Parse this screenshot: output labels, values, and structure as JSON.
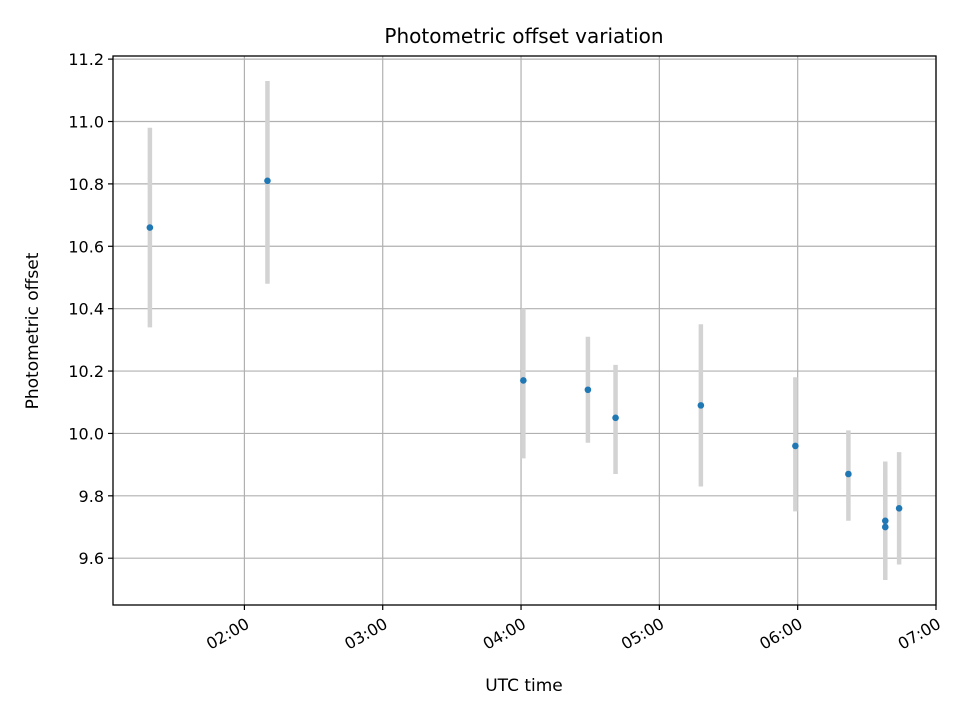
{
  "chart_data": {
    "type": "scatter",
    "title": "Photometric offset variation",
    "xlabel": "UTC time",
    "ylabel": "Photometric offset",
    "x_is_time": true,
    "xlim": [
      "01:03",
      "07:00"
    ],
    "ylim": [
      9.45,
      11.21
    ],
    "x_ticks": [
      "02:00",
      "03:00",
      "04:00",
      "05:00",
      "06:00",
      "07:00"
    ],
    "y_ticks": [
      "9.6",
      "9.8",
      "10.0",
      "10.2",
      "10.4",
      "10.6",
      "10.8",
      "11.0",
      "11.2"
    ],
    "grid": true,
    "errorbar_color": "#d3d3d3",
    "point_color": "#1f77b4",
    "points": [
      {
        "x": "01:19",
        "y": 10.66,
        "ylow": 10.34,
        "yhigh": 10.98
      },
      {
        "x": "02:10",
        "y": 10.81,
        "ylow": 10.48,
        "yhigh": 11.13
      },
      {
        "x": "04:01",
        "y": 10.17,
        "ylow": 9.92,
        "yhigh": 10.4
      },
      {
        "x": "04:29",
        "y": 10.14,
        "ylow": 9.97,
        "yhigh": 10.31
      },
      {
        "x": "04:41",
        "y": 10.05,
        "ylow": 9.87,
        "yhigh": 10.22
      },
      {
        "x": "05:18",
        "y": 10.09,
        "ylow": 9.83,
        "yhigh": 10.35
      },
      {
        "x": "05:59",
        "y": 9.96,
        "ylow": 9.75,
        "yhigh": 10.18
      },
      {
        "x": "06:22",
        "y": 9.87,
        "ylow": 9.72,
        "yhigh": 10.01
      },
      {
        "x": "06:38",
        "y": 9.72,
        "ylow": 9.57,
        "yhigh": 9.91
      },
      {
        "x": "06:38",
        "y": 9.7,
        "ylow": 9.53,
        "yhigh": 9.87
      },
      {
        "x": "06:44",
        "y": 9.76,
        "ylow": 9.58,
        "yhigh": 9.94
      }
    ]
  }
}
